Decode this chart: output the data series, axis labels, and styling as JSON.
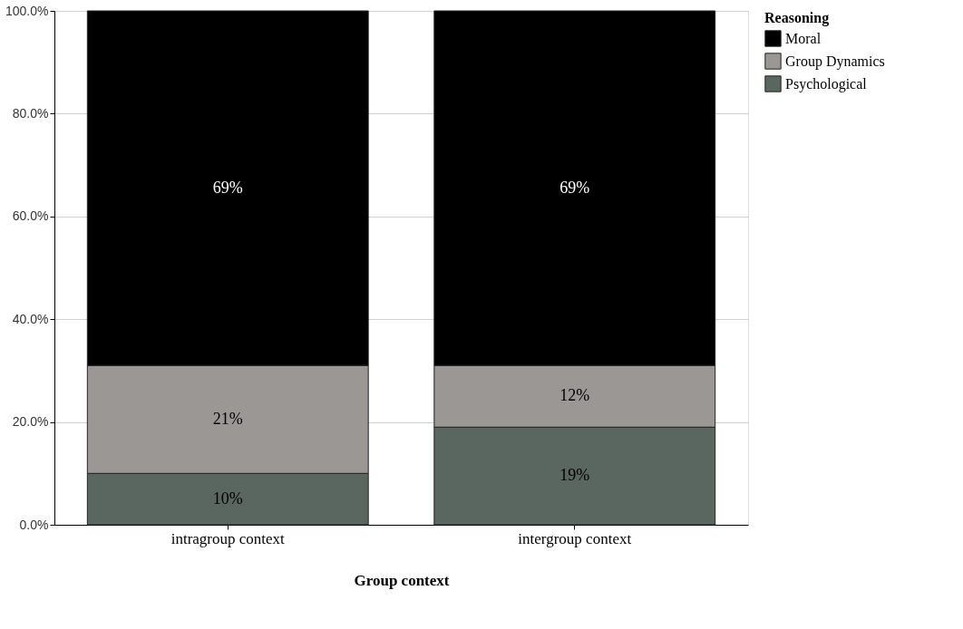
{
  "chart_data": {
    "type": "bar",
    "stacked": true,
    "xlabel": "Group context",
    "legend_title": "Reasoning",
    "legend": "top right",
    "grid": "y",
    "categories": [
      "intragroup context",
      "intergroup context"
    ],
    "ylim": [
      0,
      100
    ],
    "yticks": [
      {
        "value": 0,
        "label": "0.0%"
      },
      {
        "value": 20,
        "label": "20.0%"
      },
      {
        "value": 40,
        "label": "40.0%"
      },
      {
        "value": 60,
        "label": "60.0%"
      },
      {
        "value": 80,
        "label": "80.0%"
      },
      {
        "value": 100,
        "label": "100.0%"
      }
    ],
    "series": [
      {
        "name": "Psychological",
        "color": "#5a6660",
        "values": [
          10,
          19
        ],
        "value_labels": [
          "10%",
          "19%"
        ]
      },
      {
        "name": "Group Dynamics",
        "color": "#9a9795",
        "values": [
          21,
          12
        ],
        "value_labels": [
          "21%",
          "12%"
        ]
      },
      {
        "name": "Moral",
        "color": "#000000",
        "values": [
          69,
          69
        ],
        "value_labels": [
          "69%",
          "69%"
        ]
      }
    ]
  }
}
